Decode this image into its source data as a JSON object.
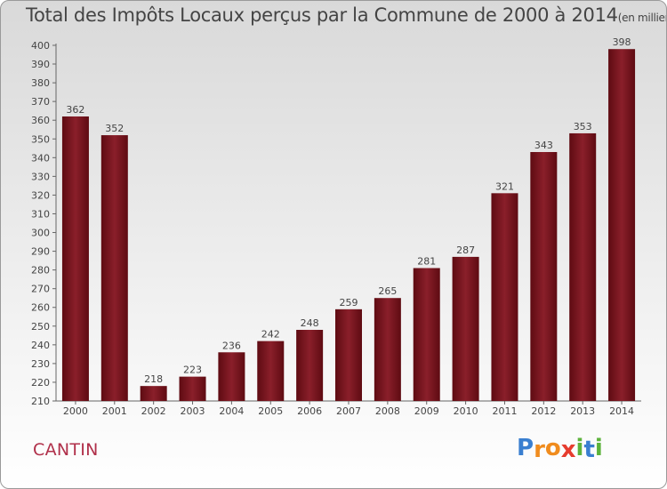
{
  "chart_data": {
    "type": "bar",
    "title": "Total des Impôts Locaux perçus par la Commune de 2000 à 2014",
    "unit": "(en milliers d'€)",
    "categories": [
      "2000",
      "2001",
      "2002",
      "2003",
      "2004",
      "2005",
      "2006",
      "2007",
      "2008",
      "2009",
      "2010",
      "2011",
      "2012",
      "2013",
      "2014"
    ],
    "values": [
      362,
      352,
      218,
      223,
      236,
      242,
      248,
      259,
      265,
      281,
      287,
      321,
      343,
      353,
      398
    ],
    "ylim": [
      210,
      400
    ],
    "ytick_step": 10,
    "xlabel": "",
    "ylabel": "",
    "grid": false,
    "bar_color": "#7a1520"
  },
  "footer": {
    "commune": "CANTIN",
    "logo": {
      "letters": [
        "P",
        "r",
        "o",
        "x",
        "i",
        "t",
        "i"
      ],
      "colors": [
        "#3a7fd0",
        "#f08c1e",
        "#f08c1e",
        "#e63c2e",
        "#5db33c",
        "#3a7fd0",
        "#5db33c"
      ]
    }
  }
}
